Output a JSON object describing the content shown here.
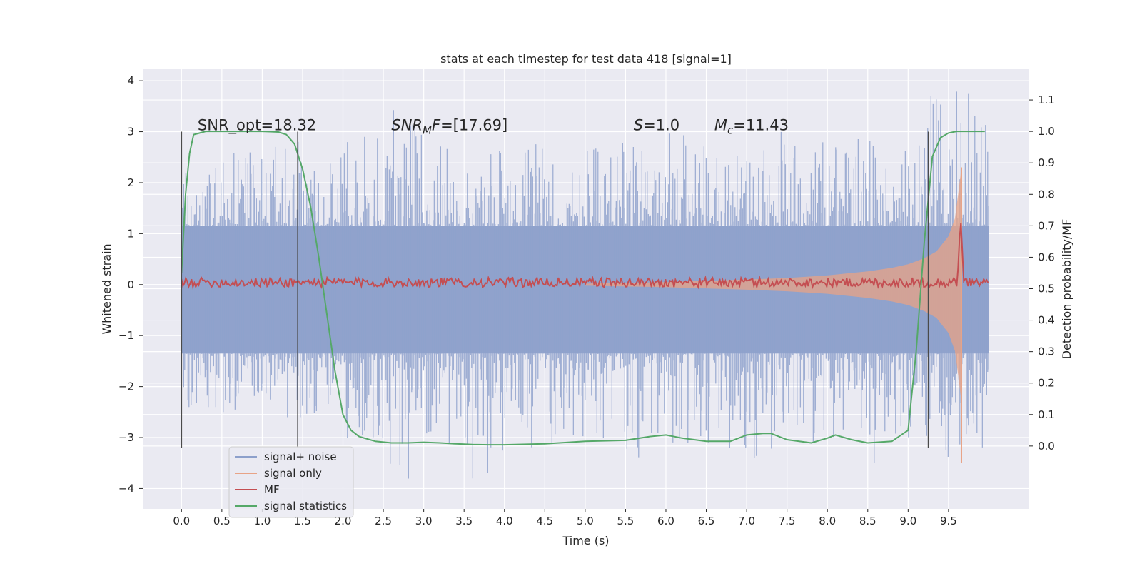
{
  "chart_data": {
    "type": "line",
    "title": "stats at each timestep for test data 418 [signal=1]",
    "xlabel": "Time (s)",
    "ylabel": "Whitened strain",
    "ylabel_right": "Detection probability/MF",
    "xlim": [
      -0.48,
      10.5
    ],
    "ylim": [
      -4.4,
      4.24
    ],
    "ylim_right": [
      -0.2,
      1.2
    ],
    "x_ticks": [
      "0.0",
      "0.5",
      "1.0",
      "1.5",
      "2.0",
      "2.5",
      "3.0",
      "3.5",
      "4.0",
      "4.5",
      "5.0",
      "5.5",
      "6.0",
      "6.5",
      "7.0",
      "7.5",
      "8.0",
      "8.5",
      "9.0",
      "9.5"
    ],
    "x_tick_values": [
      0,
      0.5,
      1,
      1.5,
      2,
      2.5,
      3,
      3.5,
      4,
      4.5,
      5,
      5.5,
      6,
      6.5,
      7,
      7.5,
      8,
      8.5,
      9,
      9.5
    ],
    "y_ticks": [
      "4",
      "3",
      "2",
      "1",
      "0",
      "−1",
      "−2",
      "−3",
      "−4"
    ],
    "y_tick_values": [
      4,
      3,
      2,
      1,
      0,
      -1,
      -2,
      -3,
      -4
    ],
    "y_right_ticks": [
      "1.1",
      "1.0",
      "0.9",
      "0.8",
      "0.7",
      "0.6",
      "0.5",
      "0.4",
      "0.3",
      "0.2",
      "0.1",
      "0.0"
    ],
    "y_right_tick_values": [
      1.1,
      1.0,
      0.9,
      0.8,
      0.7,
      0.6,
      0.5,
      0.4,
      0.3,
      0.2,
      0.1,
      0.0
    ],
    "grid": true,
    "legend_placement": "lower-left",
    "annotations": [
      {
        "text": "SNR_opt=18.32",
        "x": 0.2,
        "y": 3.0
      },
      {
        "text": "SNR_MF=[17.69]",
        "x": 2.6,
        "y": 3.0
      },
      {
        "text": "S=1.0",
        "x": 5.6,
        "y": 3.0
      },
      {
        "text": "M_c=11.43",
        "x": 6.6,
        "y": 3.0
      }
    ],
    "vertical_lines": [
      {
        "x": 0.0,
        "y_range": [
          -3.2,
          3.0
        ]
      },
      {
        "x": 1.44,
        "y_range": [
          -3.2,
          3.0
        ]
      },
      {
        "x": 9.25,
        "y_range": [
          -3.2,
          3.0
        ]
      }
    ],
    "series": [
      {
        "name": "signal+ noise",
        "axis": "left",
        "color": "#8da0cb",
        "noise_envelope": {
          "x_start": 0.0,
          "x_end": 10.0,
          "band_upper": 1.15,
          "band_lower": -1.35,
          "peaks_upper": [
            2.7,
            2.6,
            2.8,
            2.5,
            2.9,
            3.7,
            2.8,
            2.7,
            2.9,
            2.6,
            2.8,
            2.7,
            3.0,
            2.9,
            3.0,
            2.8,
            3.0,
            2.9,
            3.7,
            3.8
          ],
          "peaks_lower": [
            -2.4,
            -2.5,
            -2.6,
            -2.7,
            -3.0,
            -4.0,
            -3.2,
            -3.8,
            -3.2,
            -3.1,
            -3.0,
            -3.4,
            -3.3,
            -3.2,
            -3.4,
            -3.3,
            -3.2,
            -3.5,
            -3.5,
            -3.2
          ]
        }
      },
      {
        "name": "signal only",
        "axis": "left",
        "color": "#e8a386",
        "x": [
          5.0,
          6.0,
          7.0,
          7.5,
          8.0,
          8.5,
          8.8,
          9.0,
          9.2,
          9.35,
          9.5,
          9.58,
          9.63,
          9.66
        ],
        "amplitude": [
          0.02,
          0.05,
          0.1,
          0.13,
          0.18,
          0.26,
          0.33,
          0.4,
          0.52,
          0.65,
          0.95,
          1.3,
          1.9,
          2.3
        ],
        "endpoint": {
          "x": 9.66,
          "y": -3.5
        }
      },
      {
        "name": "MF",
        "axis": "right",
        "color": "#c44e52",
        "baseline": 0.52,
        "noise": 0.015,
        "peak": {
          "x": 9.65,
          "y": 0.73
        }
      },
      {
        "name": "signal statistics",
        "axis": "right",
        "color": "#55a868",
        "x": [
          0.0,
          0.05,
          0.1,
          0.15,
          0.3,
          0.5,
          1.0,
          1.2,
          1.3,
          1.4,
          1.5,
          1.6,
          1.7,
          1.8,
          1.9,
          2.0,
          2.1,
          2.2,
          2.4,
          2.6,
          2.8,
          3.0,
          3.2,
          3.4,
          3.6,
          3.8,
          4.0,
          4.5,
          5.0,
          5.5,
          5.8,
          6.0,
          6.2,
          6.5,
          6.8,
          7.0,
          7.2,
          7.3,
          7.5,
          7.8,
          8.0,
          8.1,
          8.3,
          8.5,
          8.8,
          9.0,
          9.1,
          9.2,
          9.3,
          9.4,
          9.5,
          9.6,
          9.7,
          9.8,
          9.9,
          9.95
        ],
        "y": [
          0.55,
          0.8,
          0.93,
          0.99,
          1.0,
          1.0,
          1.0,
          0.998,
          0.99,
          0.96,
          0.88,
          0.76,
          0.6,
          0.42,
          0.24,
          0.1,
          0.05,
          0.03,
          0.015,
          0.01,
          0.01,
          0.012,
          0.01,
          0.007,
          0.005,
          0.004,
          0.004,
          0.007,
          0.015,
          0.018,
          0.03,
          0.035,
          0.025,
          0.015,
          0.015,
          0.035,
          0.04,
          0.04,
          0.02,
          0.01,
          0.025,
          0.035,
          0.02,
          0.01,
          0.015,
          0.05,
          0.3,
          0.65,
          0.92,
          0.98,
          0.995,
          1.0,
          1.0,
          1.0,
          1.0,
          1.0
        ]
      }
    ]
  }
}
